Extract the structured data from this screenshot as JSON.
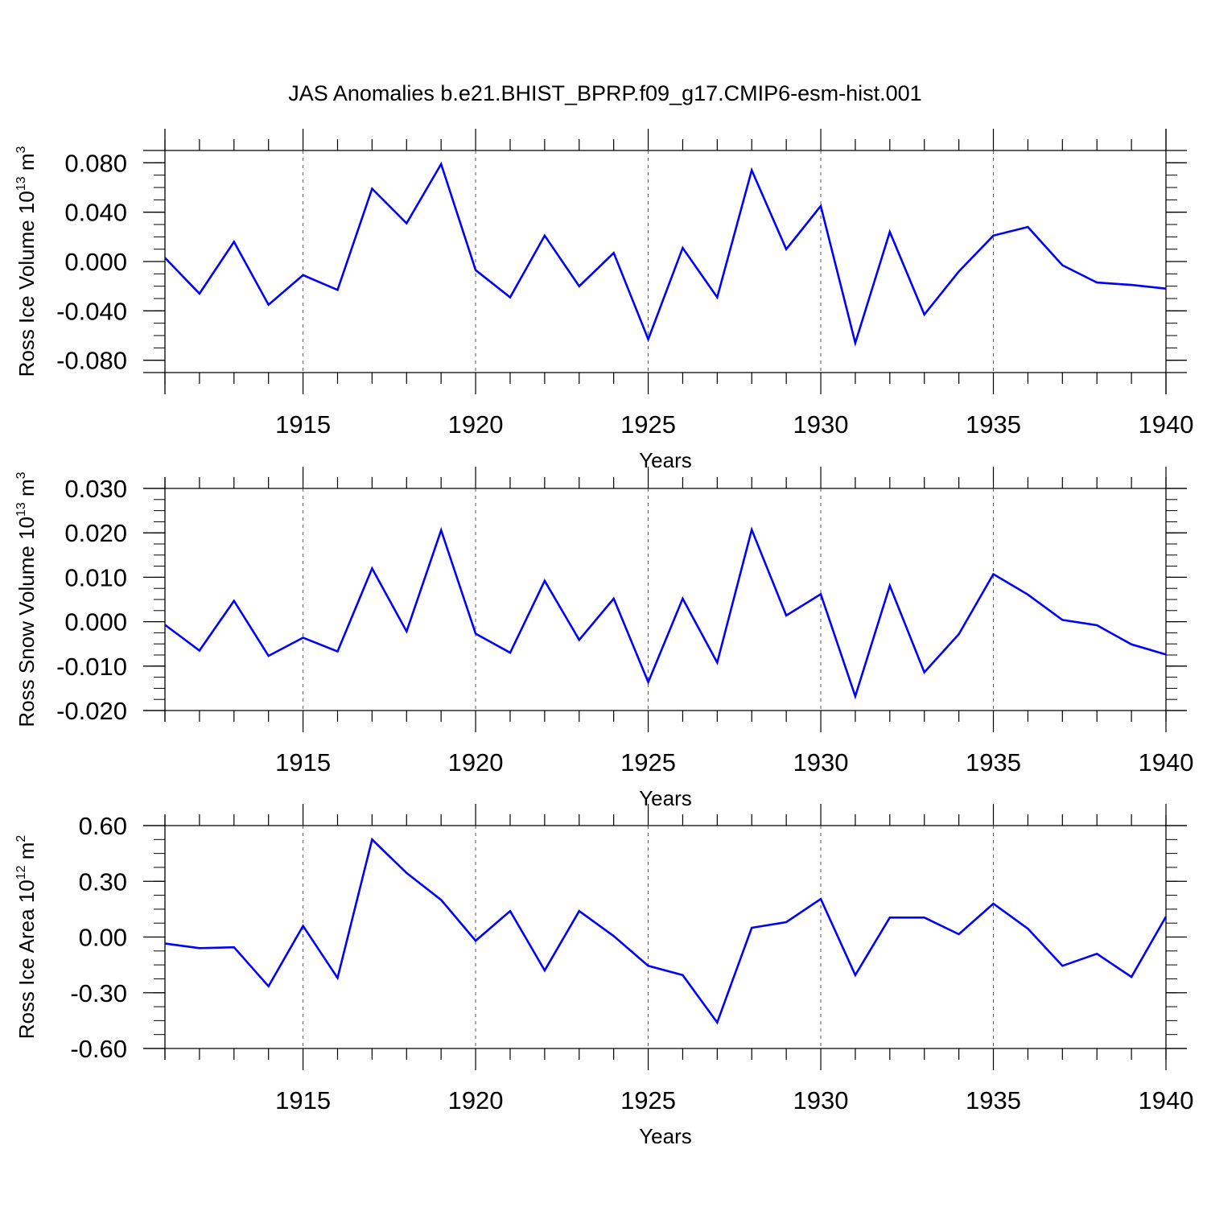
{
  "title": "JAS Anomalies b.e21.BHIST_BPRP.f09_g17.CMIP6-esm-hist.001",
  "line_color": "#0000ff",
  "chart_data": [
    {
      "type": "line",
      "x": [
        1911,
        1912,
        1913,
        1914,
        1915,
        1916,
        1917,
        1918,
        1919,
        1920,
        1921,
        1922,
        1923,
        1924,
        1925,
        1926,
        1927,
        1928,
        1929,
        1930,
        1931,
        1932,
        1933,
        1934,
        1935,
        1936,
        1937,
        1938,
        1939,
        1940
      ],
      "values": [
        0.003,
        -0.026,
        0.016,
        -0.035,
        -0.011,
        -0.023,
        0.059,
        0.031,
        0.079,
        -0.007,
        -0.029,
        0.021,
        -0.02,
        0.007,
        -0.063,
        0.011,
        -0.029,
        0.074,
        0.01,
        0.045,
        -0.066,
        0.024,
        -0.043,
        -0.008,
        0.021,
        0.028,
        -0.003,
        -0.017,
        -0.019,
        -0.022
      ],
      "ylim": [
        -0.09,
        0.09
      ],
      "yticks": [
        -0.08,
        -0.04,
        0.0,
        0.04,
        0.08
      ],
      "ytick_labels": [
        "-0.080",
        "-0.040",
        "0.000",
        "0.040",
        "0.080"
      ],
      "xticks": [
        1915,
        1920,
        1925,
        1930,
        1935,
        1940
      ],
      "xtick_labels": [
        "1915",
        "1920",
        "1925",
        "1930",
        "1935",
        "1940"
      ],
      "xlim": [
        1911,
        1940
      ],
      "ylabel": "Ross Ice Volume 10",
      "ylabel_exp": "13",
      "ylabel_unit": " m",
      "ylabel_unit_exp": "3",
      "xlabel": "Years",
      "grid": "dashed vertical at major x ticks"
    },
    {
      "type": "line",
      "x": [
        1911,
        1912,
        1913,
        1914,
        1915,
        1916,
        1917,
        1918,
        1919,
        1920,
        1921,
        1922,
        1923,
        1924,
        1925,
        1926,
        1927,
        1928,
        1929,
        1930,
        1931,
        1932,
        1933,
        1934,
        1935,
        1936,
        1937,
        1938,
        1939,
        1940
      ],
      "values": [
        -0.0007,
        -0.0065,
        0.0047,
        -0.0077,
        -0.0036,
        -0.0067,
        0.012,
        -0.0022,
        0.0206,
        -0.0027,
        -0.007,
        0.0092,
        -0.0041,
        0.0052,
        -0.0136,
        0.0052,
        -0.0092,
        0.0207,
        0.0014,
        0.0062,
        -0.0168,
        0.0081,
        -0.0114,
        -0.0028,
        0.0107,
        0.0061,
        0.0004,
        -0.0008,
        -0.0051,
        -0.0074
      ],
      "ylim": [
        -0.02,
        0.03
      ],
      "yticks": [
        -0.02,
        -0.01,
        0.0,
        0.01,
        0.02,
        0.03
      ],
      "ytick_labels": [
        "-0.020",
        "-0.010",
        "0.000",
        "0.010",
        "0.020",
        "0.030"
      ],
      "xticks": [
        1915,
        1920,
        1925,
        1930,
        1935,
        1940
      ],
      "xtick_labels": [
        "1915",
        "1920",
        "1925",
        "1930",
        "1935",
        "1940"
      ],
      "xlim": [
        1911,
        1940
      ],
      "ylabel": "Ross Snow Volume 10",
      "ylabel_exp": "13",
      "ylabel_unit": " m",
      "ylabel_unit_exp": "3",
      "xlabel": "Years",
      "grid": "dashed vertical at major x ticks"
    },
    {
      "type": "line",
      "x": [
        1911,
        1912,
        1913,
        1914,
        1915,
        1916,
        1917,
        1918,
        1919,
        1920,
        1921,
        1922,
        1923,
        1924,
        1925,
        1926,
        1927,
        1928,
        1929,
        1930,
        1931,
        1932,
        1933,
        1934,
        1935,
        1936,
        1937,
        1938,
        1939,
        1940
      ],
      "values": [
        -0.035,
        -0.06,
        -0.055,
        -0.265,
        0.06,
        -0.22,
        0.525,
        0.345,
        0.2,
        -0.02,
        0.14,
        -0.18,
        0.14,
        0.005,
        -0.155,
        -0.205,
        -0.46,
        0.05,
        0.08,
        0.205,
        -0.205,
        0.105,
        0.105,
        0.015,
        0.18,
        0.045,
        -0.155,
        -0.09,
        -0.215,
        0.11
      ],
      "ylim": [
        -0.6,
        0.6
      ],
      "yticks": [
        -0.6,
        -0.3,
        0.0,
        0.3,
        0.6
      ],
      "ytick_labels": [
        "-0.60",
        "-0.30",
        "0.00",
        "0.30",
        "0.60"
      ],
      "xticks": [
        1915,
        1920,
        1925,
        1930,
        1935,
        1940
      ],
      "xtick_labels": [
        "1915",
        "1920",
        "1925",
        "1930",
        "1935",
        "1940"
      ],
      "xlim": [
        1911,
        1940
      ],
      "ylabel": "Ross Ice Area 10",
      "ylabel_exp": "12",
      "ylabel_unit": " m",
      "ylabel_unit_exp": "2",
      "xlabel": "Years",
      "grid": "dashed vertical at major x ticks"
    }
  ]
}
